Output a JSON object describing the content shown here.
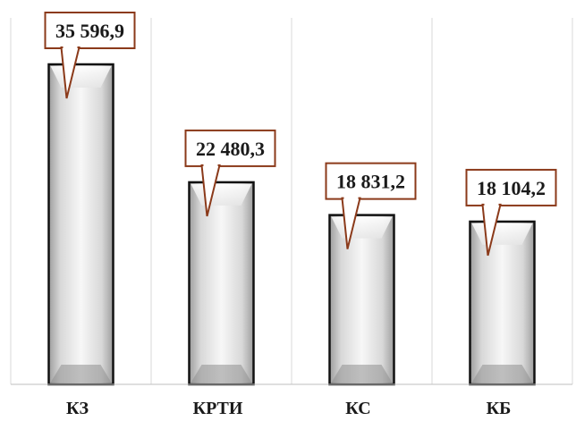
{
  "chart_data": {
    "type": "bar",
    "categories": [
      "КЗ",
      "КРТИ",
      "КС",
      "КБ"
    ],
    "values": [
      35596.9,
      22480.3,
      18831.2,
      18104.2
    ],
    "data_labels": [
      "35 596,9",
      "22 480,3",
      "18 831,2",
      "18 104,2"
    ],
    "title": "",
    "xlabel": "",
    "ylabel": "",
    "ylim": [
      0,
      40000
    ],
    "grid": "vertical separators between categories",
    "legend": "none",
    "colors": {
      "bar_fill_edge": "#b8b8b8",
      "bar_fill_center": "#f4f4f4",
      "bar_outline": "#111111",
      "callout_border": "#8b3a1a",
      "callout_fill": "#ffffff",
      "grid": "#d9d9d9"
    }
  }
}
